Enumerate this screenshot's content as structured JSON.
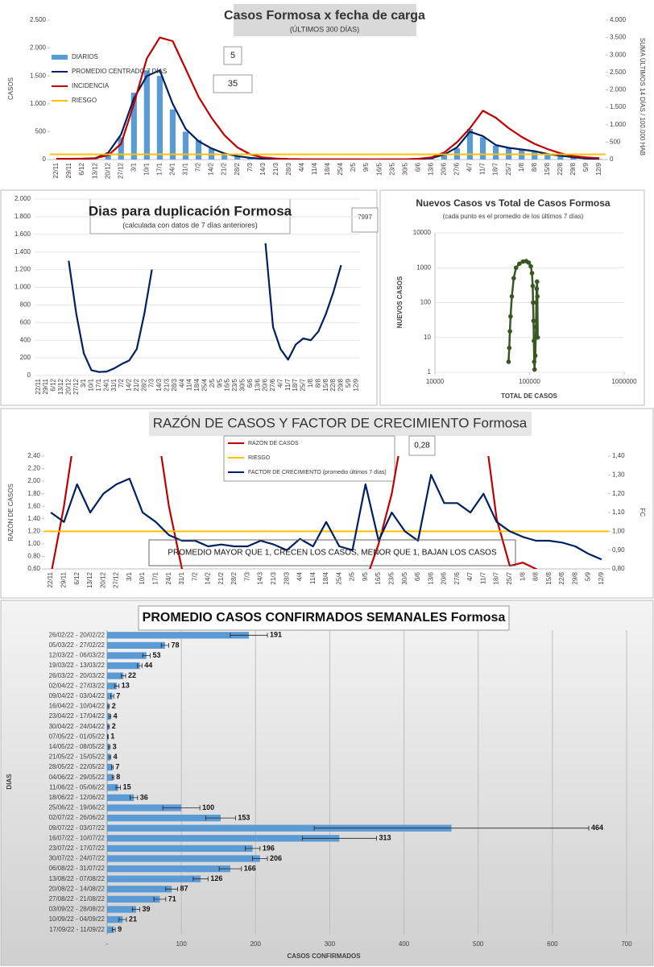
{
  "chart_data": [
    {
      "type": "combo",
      "title": "Casos Formosa x fecha de carga",
      "subtitle": "(ÚLTIMOS 300 DÍAS)",
      "y_label": "CASOS",
      "y2_label": "SUMA ÚLTIMOS 14 DÍAS / 100.000 HAB",
      "annotations": [
        "5",
        "35"
      ],
      "categories": [
        "22/11",
        "29/11",
        "6/12",
        "13/12",
        "20/12",
        "27/12",
        "3/1",
        "10/1",
        "17/1",
        "24/1",
        "31/1",
        "7/2",
        "14/2",
        "21/2",
        "28/2",
        "7/3",
        "14/3",
        "21/3",
        "28/3",
        "4/4",
        "11/4",
        "18/4",
        "25/4",
        "2/5",
        "9/5",
        "16/5",
        "23/5",
        "30/5",
        "6/6",
        "13/6",
        "20/6",
        "27/6",
        "4/7",
        "11/7",
        "18/7",
        "25/7",
        "1/8",
        "8/8",
        "15/8",
        "22/8",
        "29/8",
        "5/9",
        "12/9"
      ],
      "ylim": [
        0,
        2500
      ],
      "yticks": [
        0,
        500,
        {
          "value": 1000,
          "label": "1.000"
        },
        {
          "value": 1500,
          "label": "1.500"
        },
        {
          "value": 2000,
          "label": "2.000"
        },
        {
          "value": 2500,
          "label": "2.500"
        }
      ],
      "y2lim": [
        0,
        4000
      ],
      "y2ticks": [
        0,
        500,
        {
          "value": 1000,
          "label": "1.000"
        },
        {
          "value": 1500,
          "label": "1.500"
        },
        {
          "value": 2000,
          "label": "2.000"
        },
        {
          "value": 2500,
          "label": "2.500"
        },
        {
          "value": 3000,
          "label": "3.000"
        },
        {
          "value": 3500,
          "label": "3.500"
        },
        {
          "value": 4000,
          "label": "4.000"
        }
      ],
      "grid": false,
      "series": [
        {
          "name": "DIARIOS",
          "kind": "bar",
          "color": "#5b9bd5",
          "values": [
            5,
            5,
            10,
            20,
            100,
            400,
            1200,
            1600,
            1500,
            900,
            500,
            350,
            200,
            100,
            60,
            30,
            15,
            8,
            5,
            3,
            2,
            2,
            3,
            2,
            2,
            2,
            3,
            5,
            10,
            20,
            80,
            200,
            550,
            400,
            250,
            200,
            180,
            150,
            100,
            70,
            40,
            20,
            10
          ]
        },
        {
          "name": "PROMEDIO CENTRADO 7 DÍAS",
          "kind": "line",
          "color": "#002060",
          "values": [
            5,
            6,
            10,
            25,
            120,
            450,
            1100,
            1500,
            1600,
            1000,
            550,
            330,
            200,
            110,
            60,
            30,
            15,
            8,
            5,
            3,
            2,
            2,
            3,
            2,
            2,
            2,
            3,
            5,
            10,
            25,
            90,
            220,
            500,
            420,
            260,
            210,
            180,
            150,
            100,
            70,
            40,
            20,
            10
          ]
        },
        {
          "name": "INCIDENCIA",
          "kind": "line",
          "axis": "y2",
          "color": "#c00000",
          "values": [
            20,
            20,
            25,
            40,
            120,
            450,
            1600,
            2900,
            3500,
            3400,
            2600,
            1800,
            1200,
            700,
            350,
            150,
            60,
            30,
            15,
            10,
            8,
            6,
            6,
            6,
            5,
            5,
            6,
            10,
            20,
            60,
            200,
            500,
            900,
            1400,
            1200,
            900,
            650,
            450,
            300,
            180,
            100,
            60,
            40
          ]
        },
        {
          "name": "RIESGO",
          "kind": "hline",
          "axis": "y2",
          "color": "#ffc000",
          "value": 150
        }
      ]
    },
    {
      "type": "line",
      "title": "Dias para duplicación Formosa",
      "subtitle": "(calculada con datos de 7 días anteriores)",
      "annotations": [
        "7997"
      ],
      "categories": [
        "22/11",
        "29/11",
        "6/12",
        "13/12",
        "20/12",
        "27/12",
        "3/1",
        "10/1",
        "17/1",
        "24/1",
        "31/1",
        "7/2",
        "14/2",
        "21/2",
        "28/2",
        "7/3",
        "14/3",
        "21/3",
        "28/3",
        "4/4",
        "11/4",
        "18/4",
        "25/4",
        "2/5",
        "9/5",
        "16/5",
        "23/5",
        "30/5",
        "6/6",
        "13/6",
        "20/6",
        "27/6",
        "4/7",
        "11/7",
        "18/7",
        "25/7",
        "1/8",
        "8/8",
        "15/8",
        "22/8",
        "29/8",
        "5/9",
        "12/9"
      ],
      "ylim": [
        0,
        2000
      ],
      "yticks": [
        0,
        200,
        400,
        600,
        800,
        {
          "value": 1000,
          "label": "1.000"
        },
        {
          "value": 1200,
          "label": "1.200"
        },
        {
          "value": 1400,
          "label": "1.400"
        },
        {
          "value": 1600,
          "label": "1.600"
        },
        {
          "value": 1800,
          "label": "1.800"
        },
        {
          "value": 2000,
          "label": "2.000"
        }
      ],
      "grid": true,
      "series": [
        {
          "kind": "line",
          "color": "#002060",
          "values": [
            null,
            null,
            null,
            null,
            1300,
            700,
            250,
            60,
            40,
            45,
            80,
            130,
            170,
            300,
            700,
            1200,
            null,
            null,
            null,
            null,
            null,
            null,
            null,
            null,
            null,
            null,
            null,
            null,
            null,
            null,
            1500,
            550,
            300,
            180,
            350,
            420,
            400,
            500,
            700,
            950,
            1250,
            null,
            null
          ]
        }
      ]
    },
    {
      "type": "scatter",
      "title": "Nuevos Casos vs Total de Casos Formosa",
      "subtitle": "(cada punto es el promedio de los últimos 7 días)",
      "x_label": "TOTAL DE CASOS",
      "y_label": "NUEVOS CASOS",
      "log_x": true,
      "log_y": true,
      "grid": true,
      "color": "#385723",
      "xlim": [
        10000,
        1000000
      ],
      "xticks": [
        10000,
        100000,
        1000000
      ],
      "ylim": [
        1,
        10000
      ],
      "yticks": [
        1,
        10,
        100,
        1000,
        10000
      ],
      "x": [
        60000,
        61000,
        62000,
        63000,
        65000,
        68000,
        72000,
        78000,
        85000,
        92000,
        98000,
        103000,
        106000,
        108000,
        109000,
        110000,
        111000,
        112000,
        113000,
        115000,
        117000,
        118000,
        119000,
        120000,
        121000,
        122000
      ],
      "y": [
        2,
        5,
        15,
        40,
        150,
        500,
        1000,
        1300,
        1500,
        1550,
        1400,
        1100,
        700,
        300,
        100,
        30,
        8,
        2,
        1.2,
        3,
        20,
        100,
        250,
        400,
        150,
        10
      ]
    },
    {
      "type": "line",
      "title": "RAZÓN DE CASOS Y FACTOR DE CRECIMIENTO Formosa",
      "y_label": "RAZÓN DE CASOS",
      "y2_label": "FC",
      "annotations": [
        "0,28",
        "PROMEDIO MAYOR QUE 1, CRECEN LOS CASOS, MENOR QUE 1, BAJAN LOS CASOS"
      ],
      "categories": [
        "22/11",
        "29/11",
        "6/12",
        "13/12",
        "20/12",
        "27/12",
        "3/1",
        "10/1",
        "17/1",
        "24/1",
        "31/1",
        "7/2",
        "14/2",
        "21/2",
        "28/2",
        "7/3",
        "14/3",
        "21/3",
        "28/3",
        "4/4",
        "11/4",
        "18/4",
        "25/4",
        "2/5",
        "9/5",
        "16/5",
        "23/5",
        "30/5",
        "6/6",
        "13/6",
        "20/6",
        "27/6",
        "4/7",
        "11/7",
        "18/7",
        "25/7",
        "1/8",
        "8/8",
        "15/8",
        "22/8",
        "29/8",
        "5/9",
        "12/9"
      ],
      "ylim": [
        0.6,
        2.4
      ],
      "yticks": [
        {
          "value": 0.6,
          "label": "0,60"
        },
        {
          "value": 0.8,
          "label": "0,80"
        },
        {
          "value": 1.0,
          "label": "1,00"
        },
        {
          "value": 1.2,
          "label": "1,20"
        },
        {
          "value": 1.4,
          "label": "1,40"
        },
        {
          "value": 1.6,
          "label": "1,60"
        },
        {
          "value": 1.8,
          "label": "1,80"
        },
        {
          "value": 2.0,
          "label": "2,00"
        },
        {
          "value": 2.2,
          "label": "2,20"
        },
        {
          "value": 2.4,
          "label": "2,40"
        }
      ],
      "y2lim": [
        0.8,
        1.4
      ],
      "y2ticks": [
        {
          "value": 0.8,
          "label": "0,80"
        },
        {
          "value": 0.9,
          "label": "0,90"
        },
        {
          "value": 1.0,
          "label": "1,00"
        },
        {
          "value": 1.1,
          "label": "1,10"
        },
        {
          "value": 1.2,
          "label": "1,20"
        },
        {
          "value": 1.3,
          "label": "1,30"
        },
        {
          "value": 1.4,
          "label": "1,40"
        }
      ],
      "grid": false,
      "series": [
        {
          "name": "RAZÓN DE CASOS",
          "kind": "line",
          "color": "#c00000",
          "values": [
            0.5,
            1.6,
            3.0,
            null,
            null,
            null,
            null,
            null,
            3.0,
            1.6,
            0.6,
            0.4,
            null,
            null,
            null,
            null,
            null,
            null,
            null,
            null,
            null,
            null,
            null,
            null,
            0.4,
            1.0,
            1.8,
            3.0,
            null,
            null,
            null,
            null,
            null,
            3.0,
            1.4,
            0.65,
            0.7,
            0.6,
            0.5,
            null,
            null,
            null,
            null
          ]
        },
        {
          "name": "RIESGO",
          "kind": "hline",
          "axis": "y2",
          "color": "#ffc000",
          "value": 1.0
        },
        {
          "name": "FACTOR DE CRECIMIENTO (promedio últimos 7 días)",
          "kind": "line",
          "axis": "y2",
          "color": "#002060",
          "values": [
            1.1,
            1.05,
            1.25,
            1.1,
            1.2,
            1.25,
            1.28,
            1.1,
            1.05,
            0.98,
            0.95,
            0.95,
            0.92,
            0.93,
            0.92,
            0.92,
            0.95,
            0.93,
            0.9,
            0.96,
            0.92,
            1.05,
            0.92,
            0.9,
            1.25,
            0.95,
            1.1,
            1.0,
            0.95,
            1.3,
            1.15,
            1.15,
            1.1,
            1.2,
            1.05,
            1.0,
            0.97,
            0.95,
            0.95,
            0.94,
            0.92,
            0.88,
            0.85
          ]
        }
      ]
    },
    {
      "type": "bar",
      "orientation": "horizontal",
      "title": "PROMEDIO CASOS CONFIRMADOS SEMANALES Formosa",
      "x_label": "CASOS CONFIRMADOS",
      "y_label": "DIAS",
      "color": "#5b9bd5",
      "grid": true,
      "categories": [
        "26/02/22 - 20/02/22",
        "05/03/22 - 27/02/22",
        "12/03/22 - 06/03/22",
        "19/03/22 - 13/03/22",
        "26/03/22 - 20/03/22",
        "02/04/22 - 27/03/22",
        "09/04/22 - 03/04/22",
        "16/04/22 - 10/04/22",
        "23/04/22 - 17/04/22",
        "30/04/22 - 24/04/22",
        "07/05/22 - 01/05/22",
        "14/05/22 - 08/05/22",
        "21/05/22 - 15/05/22",
        "28/05/22 - 22/05/22",
        "04/06/22 - 29/05/22",
        "11/06/22 - 05/06/22",
        "18/06/22 - 12/06/22",
        "25/06/22 - 19/06/22",
        "02/07/22 - 26/06/22",
        "09/07/22 - 03/07/22",
        "16/07/22 - 10/07/22",
        "23/07/22 - 17/07/22",
        "30/07/22 - 24/07/22",
        "06/08/22 - 31/07/22",
        "13/08/22 - 07/08/22",
        "20/08/22 - 14/08/22",
        "27/08/22 - 21/08/22",
        "03/09/22 - 28/08/22",
        "10/09/22 - 04/09/22",
        "17/09/22 - 11/09/22"
      ],
      "values": [
        191,
        78,
        53,
        44,
        22,
        13,
        7,
        2,
        4,
        2,
        1,
        3,
        4,
        7,
        8,
        15,
        36,
        100,
        153,
        464,
        313,
        196,
        206,
        166,
        126,
        87,
        71,
        39,
        21,
        9
      ],
      "errors": [
        25,
        5,
        5,
        3,
        3,
        3,
        2,
        1,
        1,
        1,
        0.5,
        1,
        1,
        1,
        1,
        3,
        5,
        25,
        20,
        185,
        50,
        10,
        10,
        15,
        10,
        8,
        8,
        5,
        5,
        2
      ],
      "xlim": [
        0,
        700
      ],
      "xticks": [
        {
          "value": 0,
          "label": "-"
        },
        100,
        200,
        300,
        400,
        500,
        600,
        700
      ]
    }
  ]
}
